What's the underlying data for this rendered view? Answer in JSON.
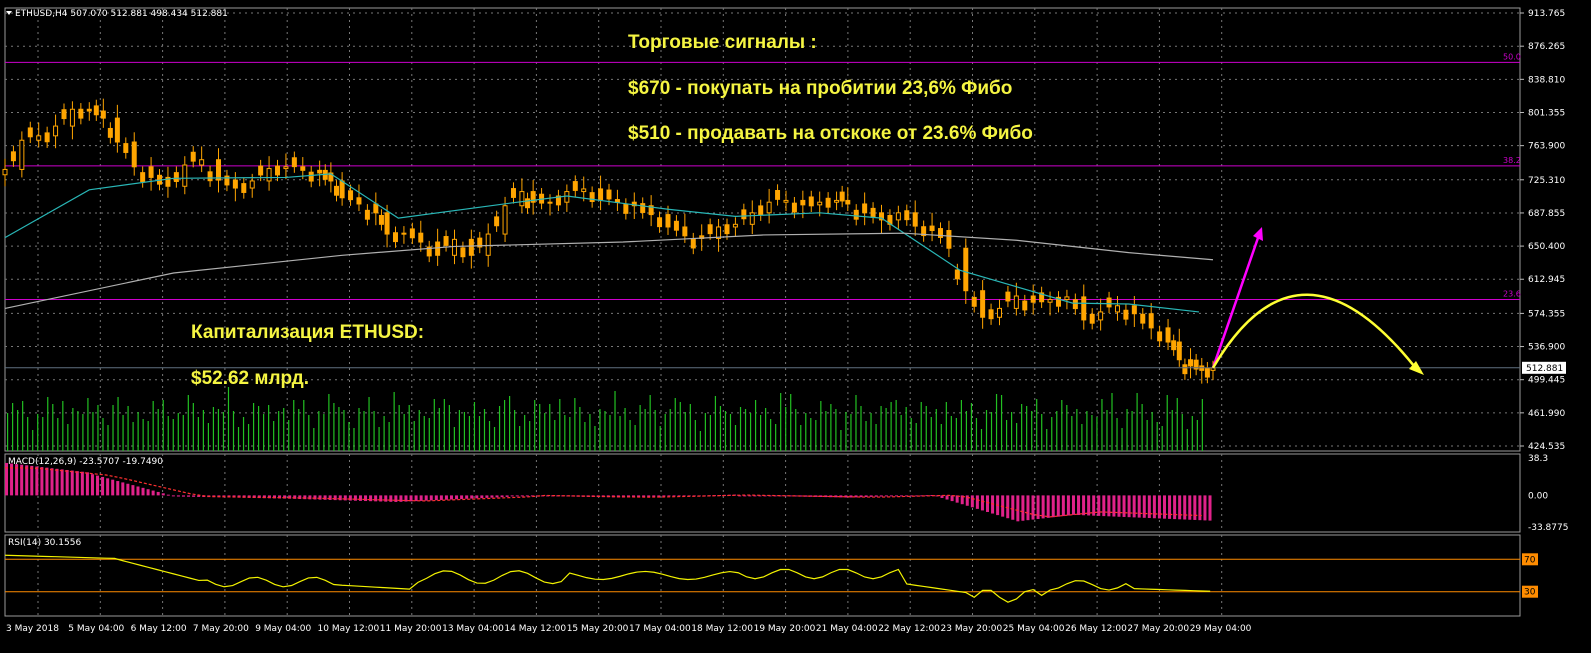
{
  "header": {
    "symbol_line": "ETHUSD,H4  507.070 512.881 498.434 512.881"
  },
  "annotations": {
    "signals_title": "Торговые сигналы :",
    "signal_buy": "$670 - покупать на пробитии 23,6% Фибо",
    "signal_sell": "$510 - продавать на отскоке от 23.6% Фибо",
    "cap_title": "Капитализация ETHUSD:",
    "cap_value": "$52.62 млрд."
  },
  "colors": {
    "background": "#000000",
    "candle": "#ffa500",
    "fib_line": "#cc00cc",
    "ma_fast": "#29b6b6",
    "ma_slow": "#b0b0b0",
    "volume": "#22c022",
    "macd_hist": "#e0228a",
    "macd_signal": "#ff3030",
    "rsi": "#f2f200",
    "rsi_level": "#ff8c00",
    "axis_text": "#ffffff",
    "arrow_buy": "#ff00ff",
    "arrow_sell": "#ffff33"
  },
  "chart_data": [
    {
      "type": "candlestick",
      "symbol": "ETHUSD",
      "timeframe": "H4",
      "ohlc_header": {
        "open": 507.07,
        "high": 512.881,
        "low": 498.434,
        "close": 512.881
      },
      "ylim": [
        424.535,
        913.765
      ],
      "y_ticks": [
        "913.765",
        "876.265",
        "838.810",
        "801.355",
        "763.900",
        "725.310",
        "687.855",
        "650.400",
        "612.945",
        "574.355",
        "536.900",
        "499.445",
        "461.990",
        "424.535"
      ],
      "current_price": "512.881",
      "x_ticks": [
        "3 May 2018",
        "5 May 04:00",
        "6 May 12:00",
        "7 May 20:00",
        "9 May 04:00",
        "10 May 12:00",
        "11 May 20:00",
        "13 May 04:00",
        "14 May 12:00",
        "15 May 20:00",
        "17 May 04:00",
        "18 May 12:00",
        "19 May 20:00",
        "21 May 04:00",
        "22 May 12:00",
        "23 May 20:00",
        "25 May 04:00",
        "26 May 12:00",
        "27 May 20:00",
        "29 May 04:00"
      ],
      "fibonacci_levels": [
        {
          "label": "50.0",
          "price": 858
        },
        {
          "label": "38.2",
          "price": 741
        },
        {
          "label": "23.6",
          "price": 590
        }
      ],
      "close_path": [
        [
          0,
          737
        ],
        [
          6,
          770
        ],
        [
          12,
          775
        ],
        [
          18,
          786
        ],
        [
          24,
          805
        ],
        [
          30,
          803
        ],
        [
          35,
          795
        ],
        [
          40,
          768
        ],
        [
          46,
          740
        ],
        [
          52,
          728
        ],
        [
          58,
          718
        ],
        [
          64,
          742
        ],
        [
          70,
          748
        ],
        [
          76,
          725
        ],
        [
          82,
          716
        ],
        [
          88,
          724
        ],
        [
          94,
          738
        ],
        [
          100,
          740
        ],
        [
          106,
          736
        ],
        [
          112,
          733
        ],
        [
          116,
          724
        ],
        [
          120,
          705
        ],
        [
          126,
          698
        ],
        [
          132,
          688
        ],
        [
          136,
          664
        ],
        [
          142,
          665
        ],
        [
          148,
          655
        ],
        [
          154,
          640
        ],
        [
          160,
          658
        ],
        [
          166,
          640
        ],
        [
          172,
          664
        ],
        [
          178,
          696
        ],
        [
          184,
          712
        ],
        [
          188,
          700
        ],
        [
          194,
          700
        ],
        [
          200,
          712
        ],
        [
          206,
          715
        ],
        [
          212,
          703
        ],
        [
          218,
          700
        ],
        [
          224,
          696
        ],
        [
          230,
          686
        ],
        [
          236,
          672
        ],
        [
          242,
          662
        ],
        [
          248,
          659
        ],
        [
          254,
          672
        ],
        [
          260,
          675
        ],
        [
          266,
          688
        ],
        [
          272,
          700
        ],
        [
          278,
          702
        ],
        [
          284,
          697
        ],
        [
          290,
          700
        ],
        [
          296,
          702
        ],
        [
          300,
          698
        ],
        [
          306,
          688
        ],
        [
          312,
          680
        ],
        [
          318,
          688
        ],
        [
          324,
          673
        ],
        [
          330,
          668
        ],
        [
          336,
          648
        ],
        [
          342,
          600
        ],
        [
          348,
          570
        ],
        [
          354,
          580
        ],
        [
          360,
          594
        ],
        [
          366,
          587
        ],
        [
          372,
          590
        ],
        [
          378,
          593
        ],
        [
          384,
          567
        ],
        [
          390,
          576
        ],
        [
          396,
          583
        ],
        [
          402,
          574
        ],
        [
          408,
          558
        ],
        [
          414,
          542
        ],
        [
          418,
          522
        ],
        [
          422,
          515
        ],
        [
          426,
          510
        ],
        [
          430,
          512.881
        ]
      ],
      "moving_average_fast": [
        [
          0,
          660
        ],
        [
          30,
          714
        ],
        [
          60,
          727
        ],
        [
          100,
          728
        ],
        [
          116,
          732
        ],
        [
          140,
          682
        ],
        [
          180,
          699
        ],
        [
          200,
          707
        ],
        [
          236,
          692
        ],
        [
          260,
          684
        ],
        [
          290,
          688
        ],
        [
          312,
          682
        ],
        [
          340,
          623
        ],
        [
          380,
          586
        ],
        [
          400,
          585
        ],
        [
          425,
          576
        ]
      ],
      "moving_average_slow": [
        [
          0,
          580
        ],
        [
          60,
          620
        ],
        [
          120,
          640
        ],
        [
          160,
          650
        ],
        [
          220,
          655
        ],
        [
          270,
          663
        ],
        [
          320,
          665
        ],
        [
          360,
          657
        ],
        [
          400,
          643
        ],
        [
          430,
          635
        ]
      ],
      "forecast_buy_target": 672,
      "forecast_sell_target": 507
    },
    {
      "type": "bar",
      "name": "Volume",
      "note": "tick volume histogram under price, no scale printed"
    },
    {
      "type": "bar",
      "indicator": "MACD(12,26,9)",
      "header": "MACD(12,26,9) -23.5707 -19.7490",
      "macd": -23.5707,
      "signal": -19.749,
      "ylim": [
        -33.8775,
        38.3
      ],
      "y_ticks": [
        "38.3",
        "0.00",
        "-33.8775"
      ]
    },
    {
      "type": "line",
      "indicator": "RSI(14)",
      "header": "RSI(14) 30.1556",
      "value": 30.1556,
      "ylim": [
        0,
        100
      ],
      "levels": [
        "70",
        "30"
      ]
    }
  ]
}
